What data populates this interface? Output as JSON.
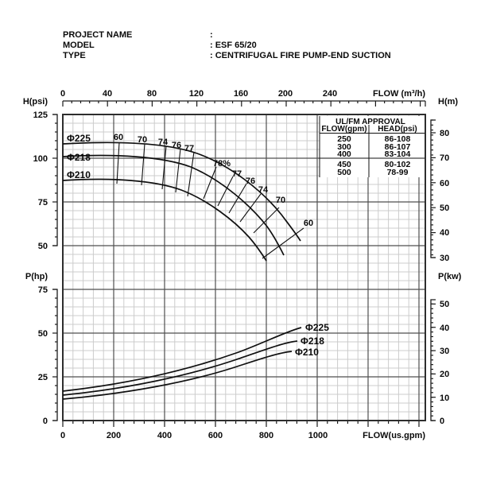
{
  "header": {
    "rows": [
      {
        "label": "PROJECT NAME",
        "value": ":"
      },
      {
        "label": "MODEL",
        "value": ": ESF 65/20"
      },
      {
        "label": "TYPE",
        "value": ": CENTRIFUGAL FIRE PUMP-END SUCTION"
      }
    ]
  },
  "axes": {
    "top": {
      "label": "FLOW (m³/h)",
      "ticks": [
        "0",
        "40",
        "80",
        "120",
        "160",
        "200",
        "240"
      ]
    },
    "left_head": {
      "label": "H(psi)",
      "ticks": [
        "125",
        "100",
        "75",
        "50"
      ]
    },
    "right_head": {
      "label": "H(m)",
      "ticks": [
        "80",
        "70",
        "60",
        "50",
        "40",
        "30"
      ]
    },
    "left_power": {
      "label": "P(hp)",
      "ticks": [
        "75",
        "50",
        "25",
        "0"
      ]
    },
    "right_power": {
      "label": "P(kw)",
      "ticks": [
        "50",
        "40",
        "30",
        "20",
        "10",
        "0"
      ]
    },
    "bottom": {
      "label": "FLOW(us.gpm)",
      "ticks": [
        "0",
        "200",
        "400",
        "600",
        "800",
        "1000"
      ]
    }
  },
  "approval_table": {
    "title": "UL/FM APPROVAL",
    "col_headers": [
      "FLOW(gpm)",
      "HEAD(psi)"
    ],
    "rows": [
      [
        "250",
        "86-108"
      ],
      [
        "300",
        "86-107"
      ],
      [
        "400",
        "83-104"
      ],
      [
        "450",
        "80-102"
      ],
      [
        "500",
        "78-99"
      ]
    ]
  },
  "head_curves": {
    "labels": [
      "Φ225",
      "Φ218",
      "Φ210"
    ]
  },
  "power_curves": {
    "labels": [
      "Φ225",
      "Φ218",
      "Φ210"
    ]
  },
  "efficiency_labels": [
    "60",
    "70",
    "74",
    "76",
    "77",
    "78%",
    "77",
    "76",
    "74",
    "70",
    "60"
  ],
  "chart_data": [
    {
      "type": "line",
      "title": "Head vs Flow - ESF 65/20 centrifugal fire pump",
      "xlabel": "FLOW(us.gpm)",
      "x2label": "FLOW (m³/h)",
      "ylabel_left": "H(psi)",
      "ylabel_right": "H(m)",
      "xlim_gpm": [
        0,
        1400
      ],
      "x2lim_m3h": [
        0,
        280
      ],
      "ylim_psi": [
        50,
        125
      ],
      "ylim_m": [
        30,
        85
      ],
      "grid": true,
      "legend_position": "labels-on-curves",
      "series": [
        {
          "name": "Φ225",
          "points_gpm_psi": [
            [
              0,
              108
            ],
            [
              200,
              108
            ],
            [
              400,
              106
            ],
            [
              600,
              98
            ],
            [
              700,
              91
            ],
            [
              800,
              81
            ],
            [
              930,
              52
            ]
          ]
        },
        {
          "name": "Φ218",
          "points_gpm_psi": [
            [
              0,
              101
            ],
            [
              200,
              101
            ],
            [
              400,
              98
            ],
            [
              600,
              90
            ],
            [
              700,
              82
            ],
            [
              800,
              70
            ],
            [
              865,
              44
            ]
          ]
        },
        {
          "name": "Φ210",
          "points_gpm_psi": [
            [
              0,
              87
            ],
            [
              200,
              87
            ],
            [
              400,
              84
            ],
            [
              600,
              76
            ],
            [
              700,
              67
            ],
            [
              800,
              47
            ]
          ]
        }
      ],
      "efficiency_pct_marks": [
        60,
        70,
        74,
        76,
        77,
        78,
        77,
        76,
        74,
        70,
        60
      ]
    },
    {
      "type": "line",
      "title": "Power vs Flow - ESF 65/20 centrifugal fire pump",
      "xlabel": "FLOW(us.gpm)",
      "ylabel_left": "P(hp)",
      "ylabel_right": "P(kw)",
      "xlim_gpm": [
        0,
        1400
      ],
      "ylim_hp": [
        0,
        75
      ],
      "ylim_kw": [
        0,
        50
      ],
      "grid": true,
      "legend_position": "labels-on-curves",
      "series": [
        {
          "name": "Φ225",
          "points_gpm_hp": [
            [
              0,
              16.5
            ],
            [
              200,
              20
            ],
            [
              400,
              26
            ],
            [
              600,
              33
            ],
            [
              800,
              43
            ],
            [
              935,
              53.5
            ]
          ]
        },
        {
          "name": "Φ218",
          "points_gpm_hp": [
            [
              0,
              14.5
            ],
            [
              200,
              18
            ],
            [
              400,
              24
            ],
            [
              600,
              30.5
            ],
            [
              800,
              39
            ],
            [
              920,
              45.5
            ]
          ]
        },
        {
          "name": "Φ210",
          "points_gpm_hp": [
            [
              0,
              12.5
            ],
            [
              200,
              16
            ],
            [
              400,
              21.5
            ],
            [
              600,
              28.5
            ],
            [
              800,
              35
            ],
            [
              900,
              40
            ]
          ]
        }
      ]
    }
  ]
}
